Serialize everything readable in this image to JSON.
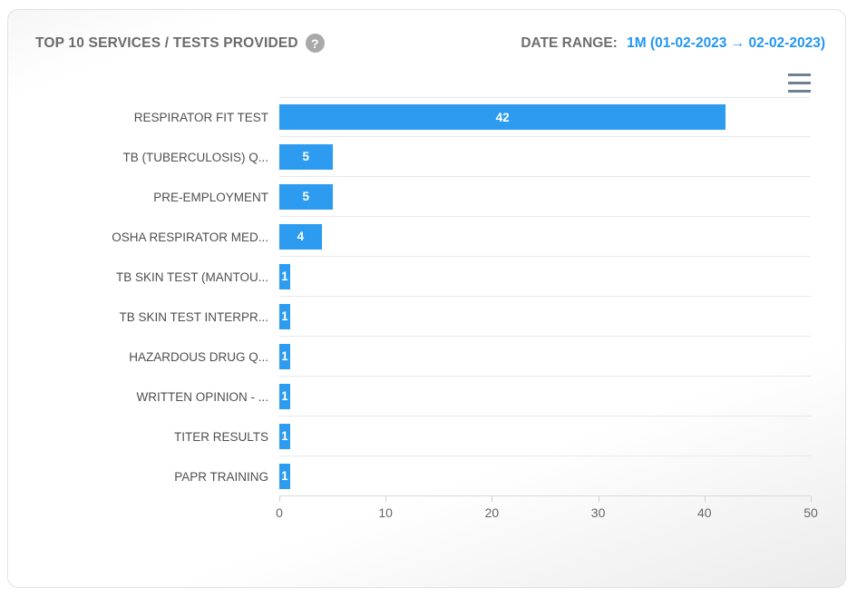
{
  "header": {
    "title": "TOP 10 SERVICES / TESTS PROVIDED",
    "help_icon_glyph": "?",
    "date_range_label": "DATE RANGE:",
    "date_range_value": "1M (01-02-2023 → 02-02-2023)"
  },
  "toolbar": {
    "menu_icon": "hamburger-menu"
  },
  "chart_data": {
    "type": "bar",
    "orientation": "horizontal",
    "title": "TOP 10 SERVICES / TESTS PROVIDED",
    "categories": [
      "RESPIRATOR FIT TEST",
      "TB (TUBERCULOSIS) Q...",
      "PRE-EMPLOYMENT",
      "OSHA RESPIRATOR MED...",
      "TB SKIN TEST (MANTOU...",
      "TB SKIN TEST INTERPR...",
      "HAZARDOUS DRUG Q...",
      "WRITTEN OPINION - ...",
      "TITER RESULTS",
      "PAPR TRAINING"
    ],
    "values": [
      42,
      5,
      5,
      4,
      1,
      1,
      1,
      1,
      1,
      1
    ],
    "xlabel": "",
    "ylabel": "",
    "xlim": [
      0,
      50
    ],
    "x_ticks": [
      0,
      10,
      20,
      30,
      40,
      50
    ],
    "grid": true,
    "legend": false,
    "bar_color": "#2d9cf0",
    "value_label_color": "#ffffff",
    "accent_text_color": "#2196f3"
  }
}
